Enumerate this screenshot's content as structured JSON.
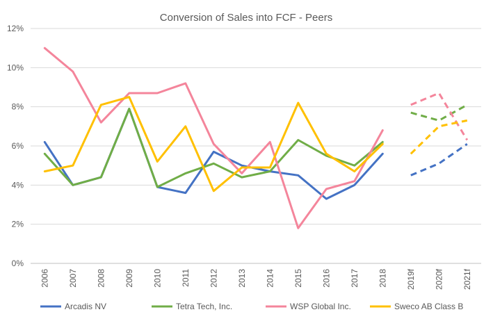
{
  "chart_data": {
    "type": "line",
    "title": "Conversion of Sales into FCF - Peers",
    "xlabel": "",
    "ylabel": "",
    "categories": [
      "2006",
      "2007",
      "2008",
      "2009",
      "2010",
      "2011",
      "2012",
      "2013",
      "2014",
      "2015",
      "2016",
      "2017",
      "2018",
      "2019f",
      "2020f",
      "2021f"
    ],
    "yticks": [
      "0%",
      "2%",
      "4%",
      "6%",
      "8%",
      "10%",
      "12%"
    ],
    "ylim": [
      0,
      12
    ],
    "grid": true,
    "legend_position": "bottom",
    "series": [
      {
        "name": "Arcadis NV",
        "color": "#4472C4",
        "values": [
          6.2,
          4.0,
          4.4,
          7.9,
          3.9,
          3.6,
          5.7,
          5.0,
          4.7,
          4.5,
          3.3,
          4.0,
          5.6,
          null,
          null,
          null
        ],
        "forecast": [
          null,
          null,
          null,
          null,
          null,
          null,
          null,
          null,
          null,
          null,
          null,
          null,
          null,
          4.5,
          5.1,
          6.1
        ]
      },
      {
        "name": "Tetra Tech, Inc.",
        "color": "#70AD47",
        "values": [
          5.6,
          4.0,
          4.4,
          7.9,
          3.9,
          4.6,
          5.1,
          4.4,
          4.7,
          6.3,
          5.5,
          5.0,
          6.2,
          null,
          null,
          null
        ],
        "forecast": [
          null,
          null,
          null,
          null,
          null,
          null,
          null,
          null,
          null,
          null,
          null,
          null,
          null,
          7.7,
          7.3,
          8.1
        ]
      },
      {
        "name": "WSP Global Inc.",
        "color": "#F4859B",
        "values": [
          11.0,
          9.8,
          7.2,
          8.7,
          8.7,
          9.2,
          6.1,
          4.6,
          6.2,
          1.8,
          3.8,
          4.2,
          6.8,
          null,
          null,
          null
        ],
        "forecast": [
          null,
          null,
          null,
          null,
          null,
          null,
          null,
          null,
          null,
          null,
          null,
          null,
          null,
          8.1,
          8.7,
          6.3
        ]
      },
      {
        "name": "Sweco AB Class B",
        "color": "#FFC000",
        "values": [
          4.7,
          5.0,
          8.1,
          8.5,
          5.2,
          7.0,
          3.7,
          4.9,
          4.9,
          8.2,
          5.6,
          4.7,
          6.1,
          null,
          null,
          null
        ],
        "forecast": [
          null,
          null,
          null,
          null,
          null,
          null,
          null,
          null,
          null,
          null,
          null,
          null,
          null,
          5.6,
          7.0,
          7.3
        ]
      }
    ]
  }
}
